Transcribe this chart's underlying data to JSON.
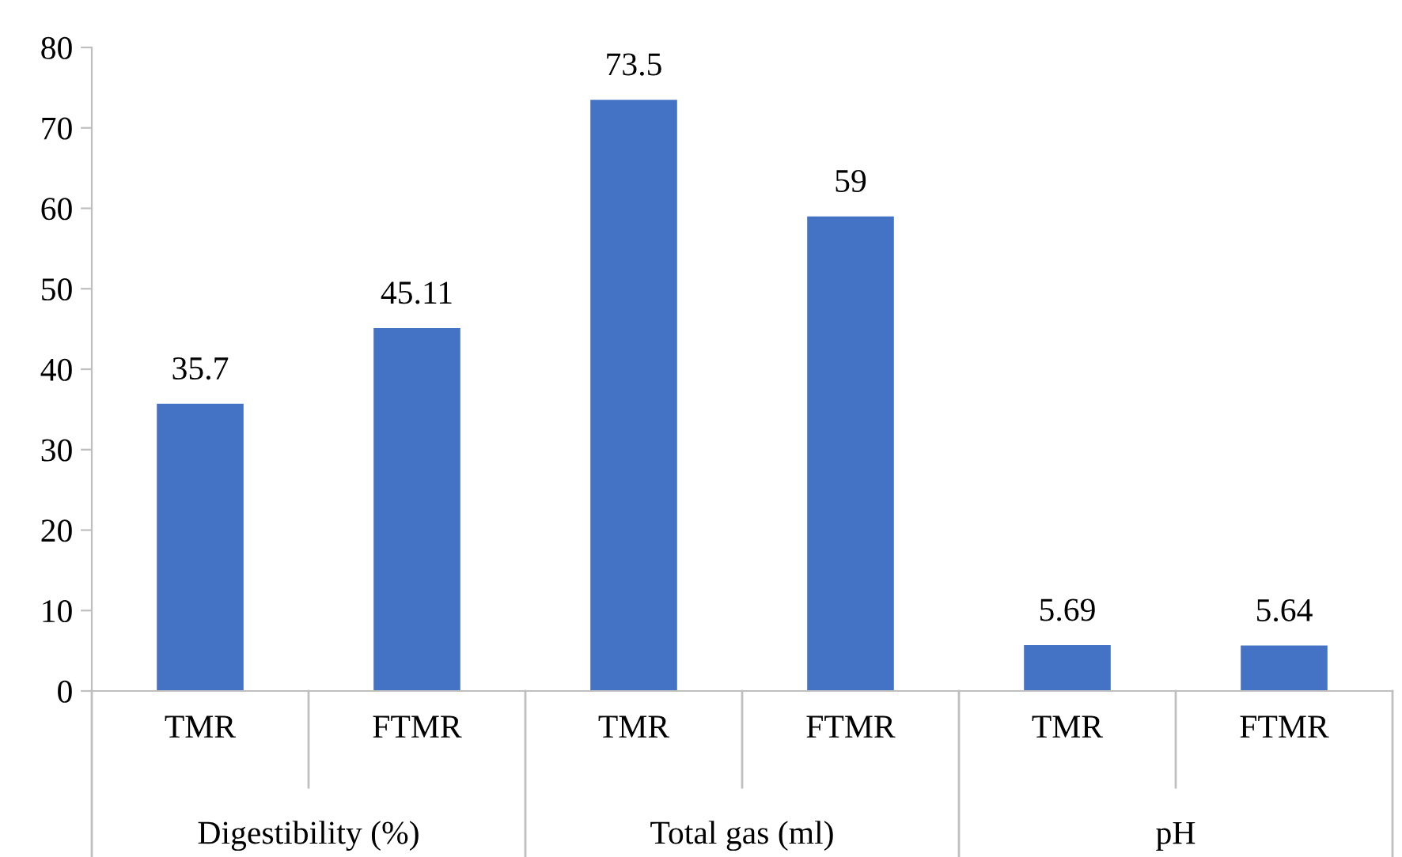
{
  "chart_data": {
    "type": "bar",
    "categories": [
      "TMR",
      "FTMR",
      "TMR",
      "FTMR",
      "TMR",
      "FTMR"
    ],
    "values": [
      35.7,
      45.11,
      73.5,
      59,
      5.69,
      5.64
    ],
    "color": "#4472c4",
    "ylim": [
      0,
      80
    ],
    "yticks": [
      0,
      10,
      20,
      30,
      40,
      50,
      60,
      70,
      80
    ],
    "data_labels": true,
    "annotations": [
      "Digestibility (%)",
      "Total gas (ml)",
      "pH"
    ]
  }
}
